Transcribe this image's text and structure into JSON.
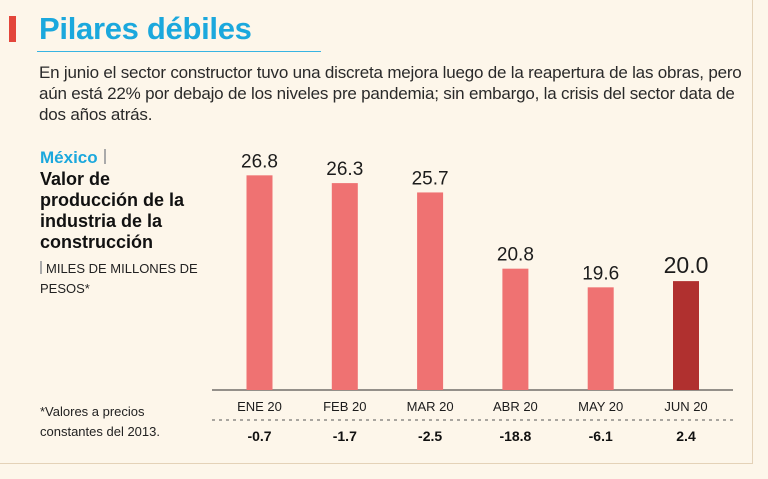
{
  "title": "Pilares débiles",
  "subtitle": "En junio el sector constructor tuvo una discreta mejora luego de la reapertura de las obras, pero aún está 22% por debajo de los niveles pre pandemia; sin embargo, la crisis del sector data de dos años atrás.",
  "region": "México",
  "chart_title": "Valor de producción de la industria de la construcción",
  "units": "MILES DE MILLONES DE PESOS*",
  "note": "*Valores a precios constantes del 2013.",
  "colors": {
    "title": "#1ba8dd",
    "bar": "#ef7272",
    "bar_highlight": "#b0302f",
    "accent": "#e3463b"
  },
  "chart_data": {
    "type": "bar",
    "title": "Valor de producción de la industria de la construcción",
    "ylabel": "Miles de millones de pesos",
    "categories": [
      "ENE 20",
      "FEB 20",
      "MAR 20",
      "ABR 20",
      "MAY 20",
      "JUN 20"
    ],
    "values": [
      26.8,
      26.3,
      25.7,
      20.8,
      19.6,
      20.0
    ],
    "value_labels": [
      "26.8",
      "26.3",
      "25.7",
      "20.8",
      "19.6",
      "20.0"
    ],
    "secondary_row": [
      "-0.7",
      "-1.7",
      "-2.5",
      "-18.8",
      "-6.1",
      "2.4"
    ],
    "highlight_index": 5,
    "ylim": [
      13.0,
      27.4
    ],
    "grid": false
  }
}
